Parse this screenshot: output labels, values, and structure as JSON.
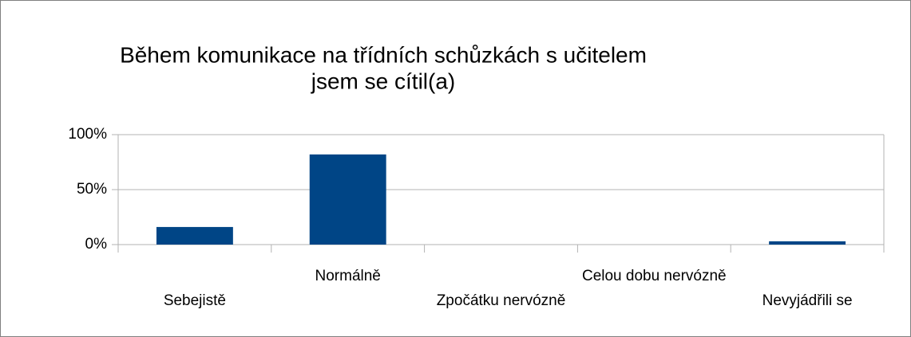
{
  "chart_data": {
    "type": "bar",
    "title": [
      "Během komunikace na třídních schůzkách s učitelem",
      "jsem se cítil(a)"
    ],
    "categories": [
      "Sebejistě",
      "Normálně",
      "Zpočátku nervózně",
      "Celou dobu nervózně",
      "Nevyjádřili se"
    ],
    "values": [
      16,
      82,
      0,
      0,
      3
    ],
    "color": "#004586",
    "ylim": [
      0,
      100
    ],
    "yticks": [
      {
        "value": 0,
        "label": "0%"
      },
      {
        "value": 50,
        "label": "50%"
      },
      {
        "value": 100,
        "label": "100%"
      }
    ],
    "grid": true
  }
}
